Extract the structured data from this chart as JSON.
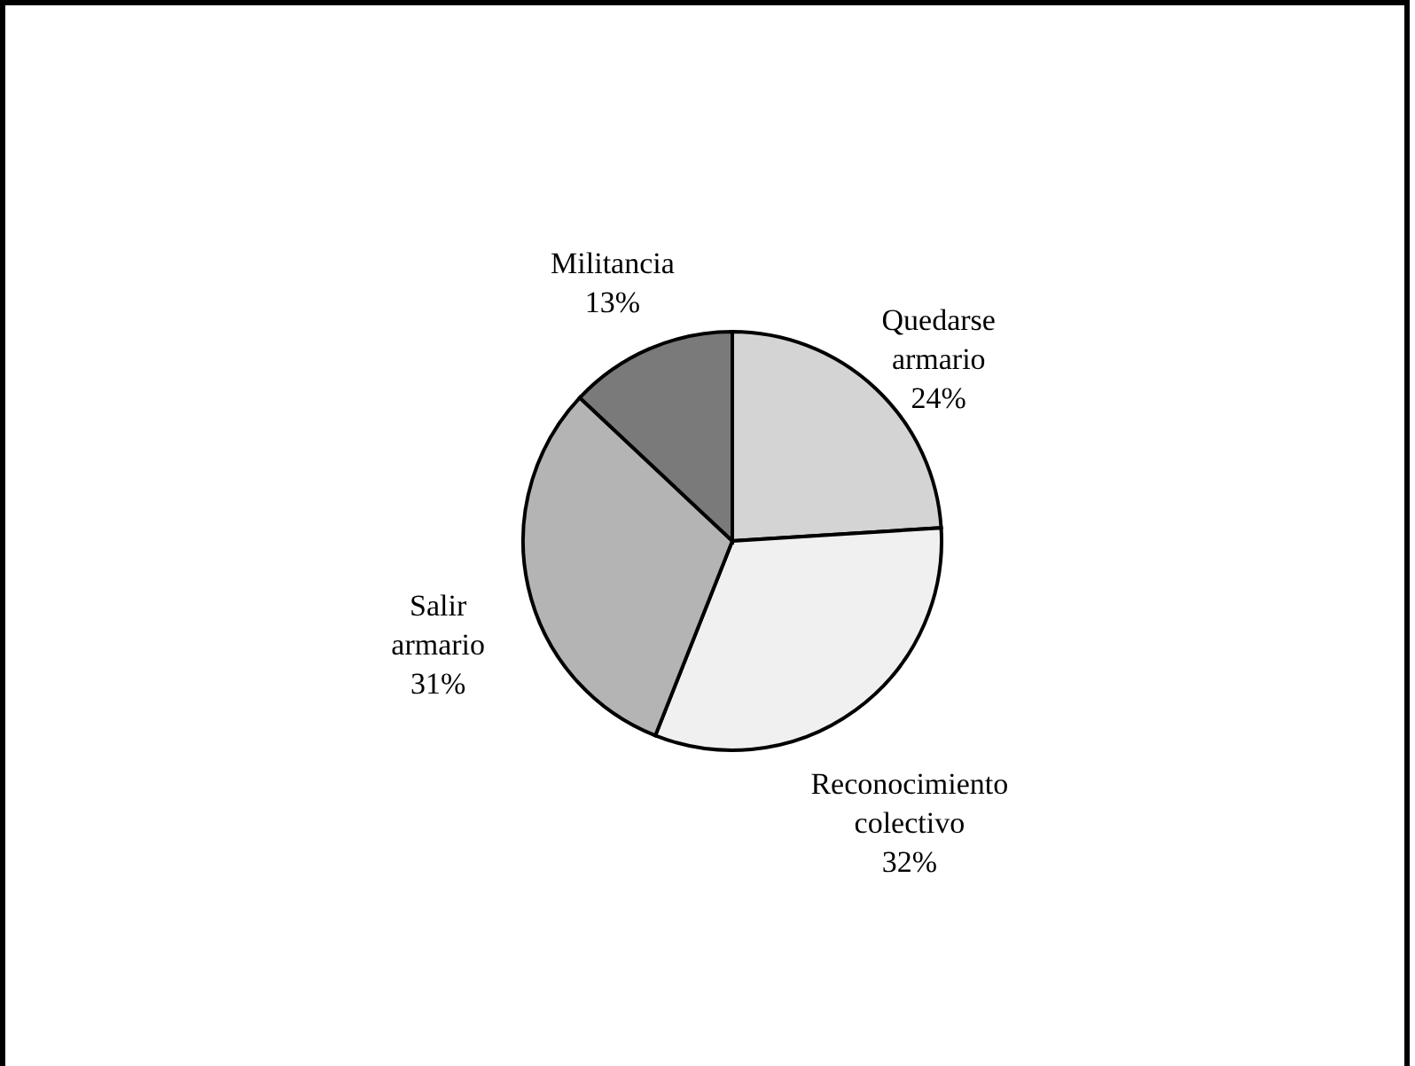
{
  "chart_data": {
    "type": "pie",
    "categories": [
      "Quedarse armario",
      "Reconocimiento colectivo",
      "Salir armario",
      "Militancia"
    ],
    "values": [
      24,
      32,
      31,
      13
    ],
    "value_labels": [
      "24%",
      "32%",
      "31%",
      "13%"
    ],
    "colors": [
      "#d4d4d4",
      "#f0f0f0",
      "#b4b4b4",
      "#7a7a7a"
    ],
    "legend": false
  }
}
